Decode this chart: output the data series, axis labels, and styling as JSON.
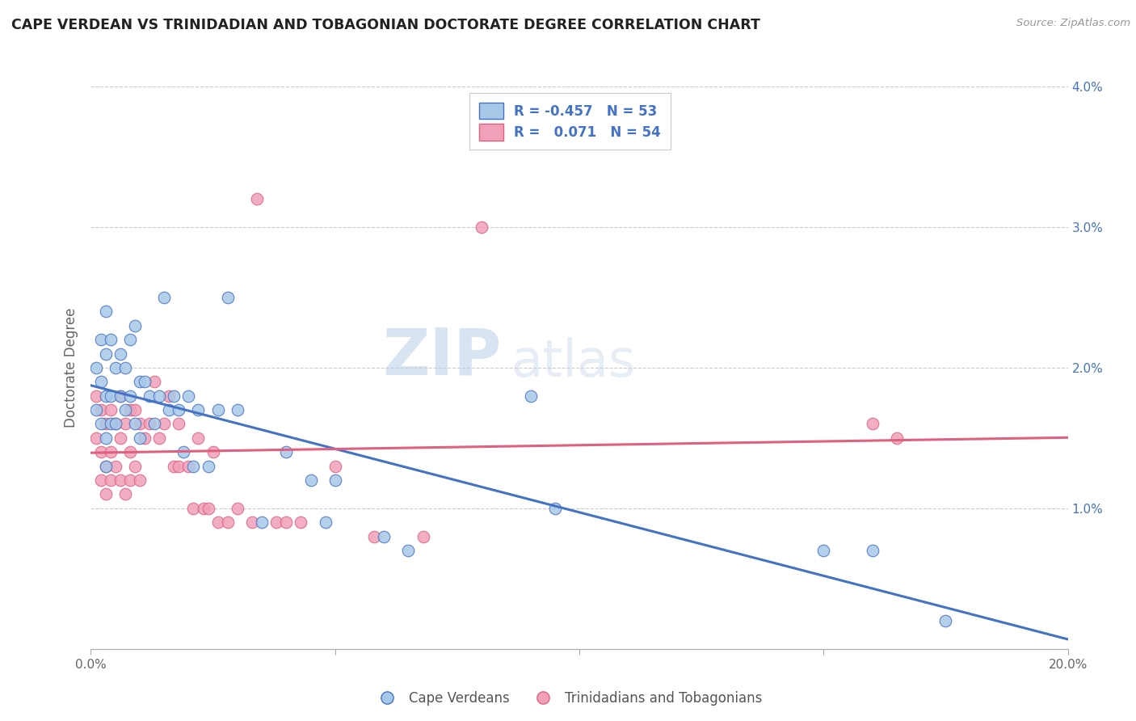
{
  "title": "CAPE VERDEAN VS TRINIDADIAN AND TOBAGONIAN DOCTORATE DEGREE CORRELATION CHART",
  "source": "Source: ZipAtlas.com",
  "ylabel_label": "Doctorate Degree",
  "legend_label1": "Cape Verdeans",
  "legend_label2": "Trinidadians and Tobagonians",
  "r1": "-0.457",
  "n1": "53",
  "r2": "0.071",
  "n2": "54",
  "xlim": [
    0.0,
    0.2
  ],
  "ylim": [
    0.0,
    0.04
  ],
  "color_blue": "#A8C8E8",
  "color_pink": "#F0A0B8",
  "line_blue": "#4472C4",
  "line_pink": "#E06080",
  "watermark_zip": "ZIP",
  "watermark_atlas": "atlas",
  "blue_points_x": [
    0.001,
    0.001,
    0.002,
    0.002,
    0.002,
    0.003,
    0.003,
    0.003,
    0.003,
    0.003,
    0.004,
    0.004,
    0.004,
    0.005,
    0.005,
    0.006,
    0.006,
    0.007,
    0.007,
    0.008,
    0.008,
    0.009,
    0.009,
    0.01,
    0.01,
    0.011,
    0.012,
    0.013,
    0.014,
    0.015,
    0.016,
    0.017,
    0.018,
    0.019,
    0.02,
    0.021,
    0.022,
    0.024,
    0.026,
    0.028,
    0.03,
    0.035,
    0.04,
    0.045,
    0.048,
    0.05,
    0.06,
    0.065,
    0.09,
    0.095,
    0.15,
    0.16,
    0.175
  ],
  "blue_points_y": [
    0.02,
    0.017,
    0.022,
    0.019,
    0.016,
    0.024,
    0.021,
    0.018,
    0.015,
    0.013,
    0.022,
    0.018,
    0.016,
    0.02,
    0.016,
    0.021,
    0.018,
    0.02,
    0.017,
    0.022,
    0.018,
    0.023,
    0.016,
    0.019,
    0.015,
    0.019,
    0.018,
    0.016,
    0.018,
    0.025,
    0.017,
    0.018,
    0.017,
    0.014,
    0.018,
    0.013,
    0.017,
    0.013,
    0.017,
    0.025,
    0.017,
    0.009,
    0.014,
    0.012,
    0.009,
    0.012,
    0.008,
    0.007,
    0.018,
    0.01,
    0.007,
    0.007,
    0.002
  ],
  "pink_points_x": [
    0.001,
    0.001,
    0.002,
    0.002,
    0.002,
    0.003,
    0.003,
    0.003,
    0.004,
    0.004,
    0.004,
    0.005,
    0.005,
    0.006,
    0.006,
    0.006,
    0.007,
    0.007,
    0.008,
    0.008,
    0.008,
    0.009,
    0.009,
    0.01,
    0.01,
    0.011,
    0.012,
    0.013,
    0.014,
    0.015,
    0.016,
    0.017,
    0.018,
    0.018,
    0.02,
    0.021,
    0.022,
    0.023,
    0.024,
    0.025,
    0.026,
    0.028,
    0.03,
    0.033,
    0.034,
    0.038,
    0.04,
    0.043,
    0.05,
    0.058,
    0.068,
    0.08,
    0.16,
    0.165
  ],
  "pink_points_y": [
    0.018,
    0.015,
    0.017,
    0.014,
    0.012,
    0.016,
    0.013,
    0.011,
    0.017,
    0.014,
    0.012,
    0.016,
    0.013,
    0.018,
    0.015,
    0.012,
    0.016,
    0.011,
    0.017,
    0.014,
    0.012,
    0.017,
    0.013,
    0.016,
    0.012,
    0.015,
    0.016,
    0.019,
    0.015,
    0.016,
    0.018,
    0.013,
    0.016,
    0.013,
    0.013,
    0.01,
    0.015,
    0.01,
    0.01,
    0.014,
    0.009,
    0.009,
    0.01,
    0.009,
    0.032,
    0.009,
    0.009,
    0.009,
    0.013,
    0.008,
    0.008,
    0.03,
    0.016,
    0.015
  ]
}
